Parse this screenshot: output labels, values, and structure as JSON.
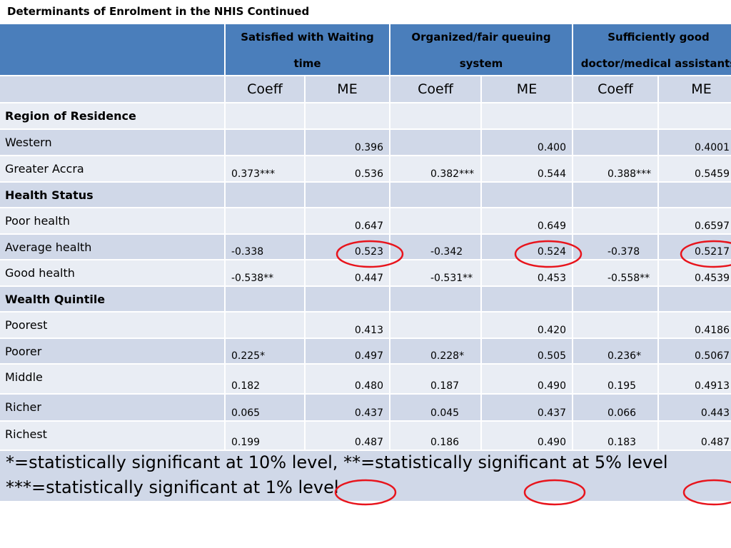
{
  "title": "Determinants of Enrolment in the NHIS Continued",
  "table": {
    "group_headers": [
      [
        "Satisfied with Waiting",
        "time"
      ],
      [
        "Organized/fair queuing",
        "system"
      ],
      [
        "Sufficiently good",
        "doctor/medical assistants"
      ]
    ],
    "sub_headers": [
      "Coeff",
      "ME",
      "Coeff",
      "ME",
      "Coeff",
      "ME"
    ],
    "rows": [
      {
        "label": "Region of Residence",
        "section": true
      },
      {
        "label": "Western",
        "values": [
          null,
          "0.396",
          null,
          "0.400",
          null,
          "0.4001"
        ]
      },
      {
        "label": "Greater Accra",
        "values": [
          "0.373***",
          "0.536",
          "0.382***",
          "0.544",
          "0.388***",
          "0.5459"
        ]
      },
      {
        "label": "Health Status",
        "section": true
      },
      {
        "label": "Poor health",
        "values": [
          null,
          "0.647",
          null,
          "0.649",
          null,
          "0.6597"
        ]
      },
      {
        "label": "Average health",
        "values": [
          "-0.338",
          "0.523",
          "-0.342",
          "0.524",
          "-0.378",
          "0.5217"
        ]
      },
      {
        "label": "Good health",
        "values": [
          "-0.538**",
          "0.447",
          "-0.531**",
          "0.453",
          "-0.558**",
          "0.4539"
        ]
      },
      {
        "label": "Wealth Quintile",
        "section": true
      },
      {
        "label": "Poorest",
        "values": [
          null,
          "0.413",
          null,
          "0.420",
          null,
          "0.4186"
        ]
      },
      {
        "label": "Poorer",
        "values": [
          "0.225*",
          "0.497",
          "0.228*",
          "0.505",
          "0.236*",
          "0.5067"
        ]
      },
      {
        "label": "Middle",
        "values": [
          "0.182",
          "0.480",
          "0.187",
          "0.490",
          "0.195",
          "0.4913"
        ]
      },
      {
        "label": "Richer",
        "values": [
          "0.065",
          "0.437",
          "0.045",
          "0.437",
          "0.066",
          "0.443"
        ]
      },
      {
        "label": "Richest",
        "values": [
          "0.199",
          "0.487",
          "0.186",
          "0.490",
          "0.183",
          "0.487"
        ]
      }
    ],
    "footnotes": [
      "*=statistically significant at 10% level, **=statistically significant at 5% level",
      "***=statistically significant at 1% level"
    ]
  }
}
